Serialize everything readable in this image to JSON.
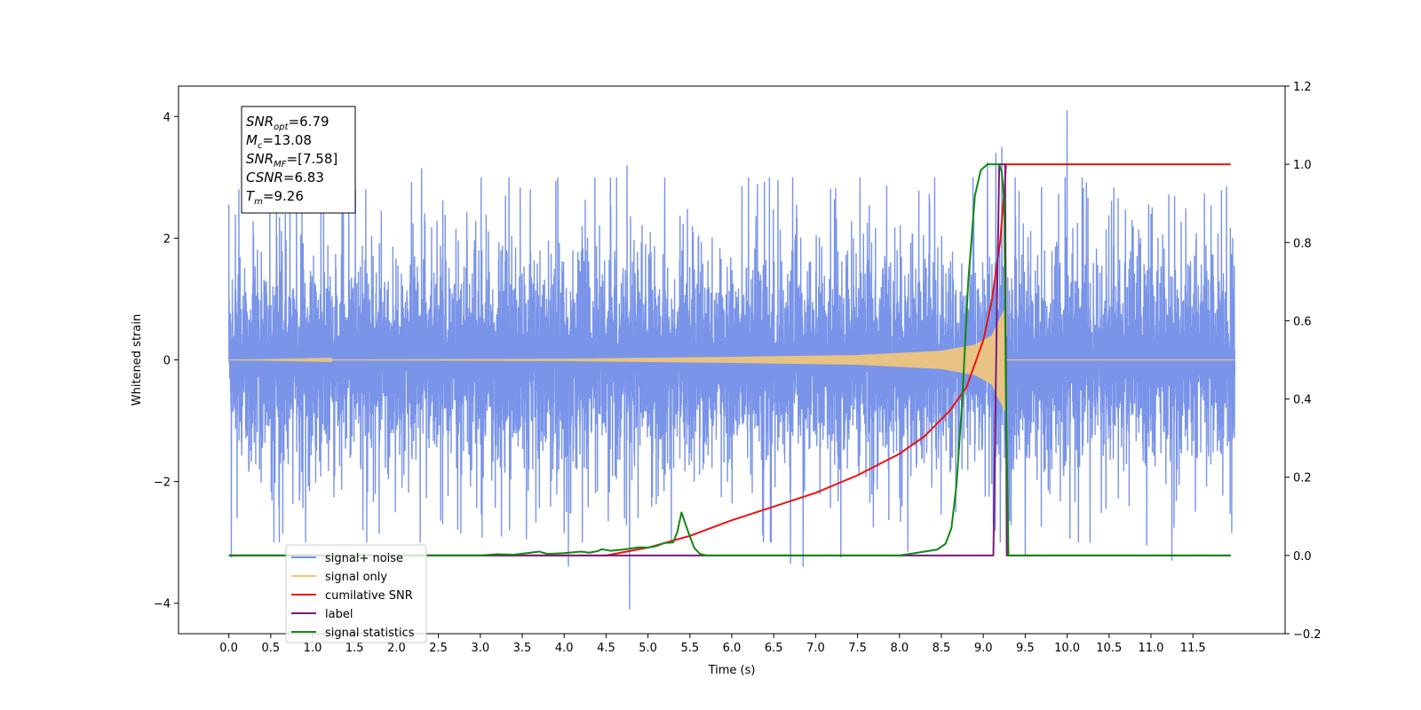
{
  "chart_data": {
    "type": "line",
    "xlabel": "Time (s)",
    "ylabel_left": "Whitened strain",
    "ylabel_right": "",
    "xlim": [
      -0.6,
      12.6
    ],
    "ylim_left": [
      -4.5,
      4.5
    ],
    "ylim_right": [
      -0.2,
      1.2
    ],
    "x_ticks": [
      0.0,
      0.5,
      1.0,
      1.5,
      2.0,
      2.5,
      3.0,
      3.5,
      4.0,
      4.5,
      5.0,
      5.5,
      6.0,
      6.5,
      7.0,
      7.5,
      8.0,
      8.5,
      9.0,
      9.5,
      10.0,
      10.5,
      11.0,
      11.5
    ],
    "x_tick_labels": [
      "0.0",
      "0.5",
      "1.0",
      "1.5",
      "2.0",
      "2.5",
      "3.0",
      "3.5",
      "4.0",
      "4.5",
      "5.0",
      "5.5",
      "6.0",
      "6.5",
      "7.0",
      "7.5",
      "8.0",
      "8.5",
      "9.0",
      "9.5",
      "10.0",
      "10.5",
      "11.0",
      "11.5"
    ],
    "y_ticks_left": [
      -4,
      -2,
      0,
      2,
      4
    ],
    "y_tick_labels_left": [
      "−4",
      "−2",
      "0",
      "2",
      "4"
    ],
    "y_ticks_right": [
      -0.2,
      0.0,
      0.2,
      0.4,
      0.6,
      0.8,
      1.0,
      1.2
    ],
    "y_tick_labels_right": [
      "−0.2",
      "0.0",
      "0.2",
      "0.4",
      "0.6",
      "0.8",
      "1.0",
      "1.2"
    ],
    "legend_position": "lower-left",
    "grid": false,
    "annotation": {
      "lines": [
        {
          "base": "SNR",
          "sub": "opt",
          "rest": "=6.79"
        },
        {
          "base": "M",
          "sub": "c",
          "rest": "=13.08"
        },
        {
          "base": "SNR",
          "sub": "MF",
          "rest": "=[7.58]"
        },
        {
          "base": "CSNR",
          "sub": "",
          "rest": "=6.83"
        },
        {
          "base": "T",
          "sub": "m",
          "rest": "=9.26"
        }
      ]
    },
    "series": [
      {
        "name": "signal+ noise",
        "axis": "left",
        "color": "#7994e8",
        "kind": "noise",
        "x_range": [
          0.0,
          12.0
        ],
        "typical_amplitude": 1.9,
        "peaks": [
          {
            "x": 0.0,
            "y": 2.55
          },
          {
            "x": 0.03,
            "y": -3.25
          },
          {
            "x": 0.12,
            "y": 2.8
          },
          {
            "x": 0.1,
            "y": -2.6
          },
          {
            "x": 1.35,
            "y": 2.5
          },
          {
            "x": 1.6,
            "y": -2.8
          },
          {
            "x": 2.3,
            "y": 3.15
          },
          {
            "x": 2.55,
            "y": -2.7
          },
          {
            "x": 3.3,
            "y": 2.7
          },
          {
            "x": 3.35,
            "y": -2.8
          },
          {
            "x": 3.55,
            "y": -2.95
          },
          {
            "x": 4.0,
            "y": -2.85
          },
          {
            "x": 4.05,
            "y": -3.4
          },
          {
            "x": 4.75,
            "y": 3.2
          },
          {
            "x": 4.78,
            "y": -4.1
          },
          {
            "x": 5.2,
            "y": 3.0
          },
          {
            "x": 6.45,
            "y": 3.0
          },
          {
            "x": 6.55,
            "y": 2.95
          },
          {
            "x": 6.7,
            "y": -3.35
          },
          {
            "x": 6.85,
            "y": -3.4
          },
          {
            "x": 7.3,
            "y": -3.25
          },
          {
            "x": 8.1,
            "y": -3.15
          },
          {
            "x": 9.05,
            "y": 3.25
          },
          {
            "x": 9.15,
            "y": 3.4
          },
          {
            "x": 9.22,
            "y": 3.5
          },
          {
            "x": 9.3,
            "y": -3.0
          },
          {
            "x": 9.5,
            "y": -3.2
          },
          {
            "x": 10.0,
            "y": 4.1
          },
          {
            "x": 10.95,
            "y": -3.05
          },
          {
            "x": 11.25,
            "y": -3.3
          },
          {
            "x": 11.9,
            "y": 2.85
          }
        ]
      },
      {
        "name": "signal only",
        "axis": "left",
        "color": "#f5c878",
        "kind": "chirp",
        "x_range": [
          0.0,
          12.0
        ],
        "amplitude_envelope": {
          "x": [
            0.0,
            4.0,
            6.0,
            7.5,
            8.5,
            8.9,
            9.1,
            9.26,
            9.27,
            12.0
          ],
          "y": [
            0.0,
            0.02,
            0.05,
            0.08,
            0.15,
            0.25,
            0.4,
            0.85,
            0.0,
            0.0
          ]
        }
      },
      {
        "name": "cumilative SNR",
        "axis": "right",
        "color": "#ee1111",
        "kind": "line",
        "x": [
          0.0,
          4.5,
          5.0,
          5.5,
          6.0,
          6.5,
          7.0,
          7.5,
          8.0,
          8.3,
          8.6,
          8.8,
          9.0,
          9.1,
          9.2,
          9.26,
          9.27,
          11.95
        ],
        "y": [
          0.0,
          0.0,
          0.02,
          0.05,
          0.09,
          0.125,
          0.16,
          0.205,
          0.26,
          0.305,
          0.37,
          0.43,
          0.55,
          0.65,
          0.8,
          0.96,
          1.0,
          1.0
        ]
      },
      {
        "name": "label",
        "axis": "right",
        "color": "#7a1a80",
        "kind": "line",
        "x": [
          0.0,
          9.12,
          9.16,
          9.19,
          9.26,
          9.28,
          11.95
        ],
        "y": [
          0.0,
          0.0,
          0.6,
          1.0,
          1.0,
          0.0,
          0.0
        ]
      },
      {
        "name": "signal statistics",
        "axis": "right",
        "color": "#118811",
        "kind": "line",
        "x": [
          0.0,
          3.0,
          3.2,
          3.4,
          3.6,
          3.7,
          3.8,
          4.0,
          4.2,
          4.3,
          4.4,
          4.45,
          4.55,
          4.7,
          4.9,
          5.0,
          5.1,
          5.2,
          5.3,
          5.35,
          5.4,
          5.48,
          5.55,
          5.62,
          5.7,
          6.0,
          7.0,
          8.0,
          8.3,
          8.45,
          8.55,
          8.62,
          8.68,
          8.75,
          8.82,
          8.9,
          8.97,
          9.05,
          9.13,
          9.19,
          9.22,
          9.25,
          9.27,
          9.3,
          11.95
        ],
        "y": [
          0.0,
          0.0,
          0.003,
          0.002,
          0.007,
          0.01,
          0.004,
          0.006,
          0.01,
          0.007,
          0.011,
          0.016,
          0.012,
          0.015,
          0.021,
          0.02,
          0.024,
          0.032,
          0.033,
          0.06,
          0.11,
          0.06,
          0.02,
          0.004,
          0.0,
          0.0,
          0.0,
          0.0,
          0.01,
          0.015,
          0.03,
          0.07,
          0.18,
          0.4,
          0.7,
          0.92,
          0.985,
          1.0,
          1.0,
          1.0,
          0.98,
          0.9,
          0.4,
          0.0,
          0.0
        ]
      }
    ]
  }
}
